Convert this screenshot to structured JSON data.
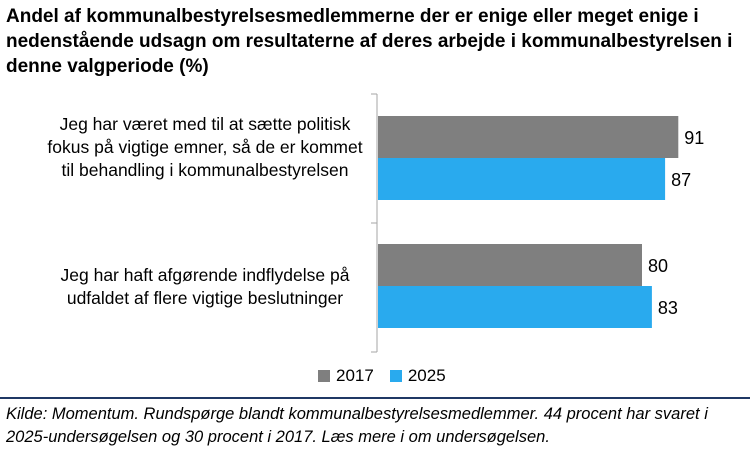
{
  "chart_data": {
    "type": "bar",
    "orientation": "horizontal",
    "title": "Andel af kommunalbestyrelsesmedlemmerne der er enige eller meget enige i nedenstående udsagn om resultaterne af deres arbejde i kommunalbestyrelsen i denne valgperiode (%)",
    "categories": [
      "Jeg har været med til at sætte politisk fokus på vigtige emner, så de er kommet til behandling i kommunalbestyrelsen",
      "Jeg har haft afgørende indflydelse på udfaldet af flere vigtige beslutninger"
    ],
    "series": [
      {
        "name": "2017",
        "color": "#7f7f7f",
        "values": [
          91,
          80
        ]
      },
      {
        "name": "2025",
        "color": "#29aaee",
        "values": [
          87,
          83
        ]
      }
    ],
    "xlim": [
      0,
      100
    ],
    "grid": false,
    "legend": "bottom"
  },
  "source": "Kilde: Momentum. Rundspørge blandt kommunalbestyrelsesmedlemmer. 44 procent har svaret i 2025-undersøgelsen og 30 procent i 2017. Læs mere i om undersøgelsen."
}
